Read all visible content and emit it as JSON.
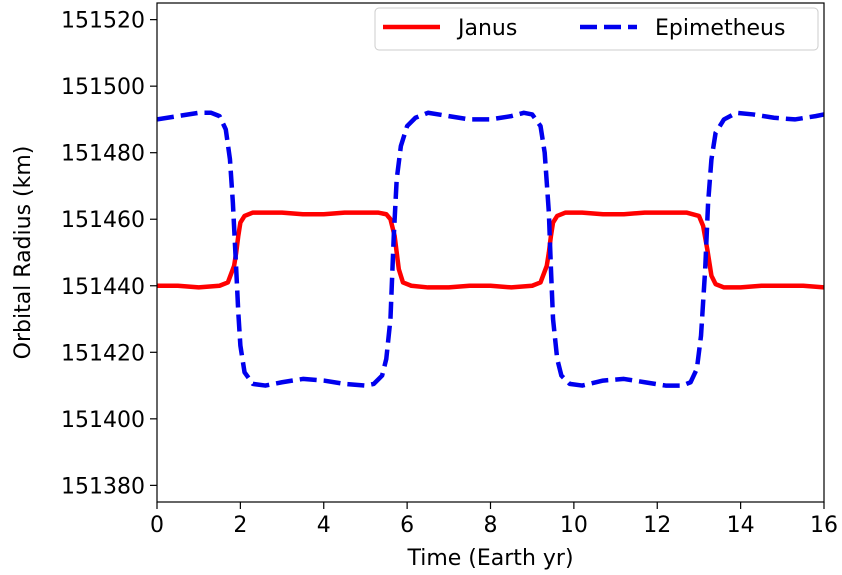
{
  "chart_data": {
    "type": "line",
    "title": "",
    "xlabel": "Time (Earth yr)",
    "ylabel": "Orbital Radius (km)",
    "xlim": [
      0,
      16
    ],
    "ylim": [
      151375,
      151525
    ],
    "xticks": [
      0,
      2,
      4,
      6,
      8,
      10,
      12,
      14,
      16
    ],
    "yticks": [
      151380,
      151400,
      151420,
      151440,
      151460,
      151480,
      151500,
      151520
    ],
    "xtick_labels": [
      "0",
      "2",
      "4",
      "6",
      "8",
      "10",
      "12",
      "14",
      "16"
    ],
    "ytick_labels": [
      "151380",
      "151400",
      "151420",
      "151440",
      "151460",
      "151480",
      "151500",
      "151520"
    ],
    "grid": false,
    "legend_position": "top-right",
    "series": [
      {
        "name": "Janus",
        "color": "#ff0000",
        "style": "solid",
        "x": [
          0,
          0.5,
          1.0,
          1.5,
          1.7,
          1.85,
          1.9,
          1.95,
          2.0,
          2.1,
          2.3,
          2.6,
          3.0,
          3.5,
          4.0,
          4.5,
          5.0,
          5.3,
          5.5,
          5.6,
          5.7,
          5.75,
          5.8,
          5.9,
          6.1,
          6.5,
          7.0,
          7.5,
          8.0,
          8.5,
          9.0,
          9.2,
          9.35,
          9.4,
          9.45,
          9.5,
          9.6,
          9.8,
          10.2,
          10.7,
          11.2,
          11.7,
          12.2,
          12.7,
          13.0,
          13.1,
          13.2,
          13.25,
          13.3,
          13.4,
          13.6,
          14.0,
          14.5,
          15.0,
          15.5,
          16.0
        ],
        "y": [
          151440,
          151440,
          151439.5,
          151440,
          151441,
          151446,
          151450,
          151455,
          151459,
          151461,
          151462,
          151462,
          151462,
          151461.5,
          151461.5,
          151462,
          151462,
          151462,
          151461.5,
          151460,
          151455,
          151450,
          151445,
          151441,
          151440,
          151439.5,
          151439.5,
          151440,
          151440,
          151439.5,
          151440,
          151441,
          151446,
          151450,
          151455,
          151459,
          151461,
          151462,
          151462,
          151461.5,
          151461.5,
          151462,
          151462,
          151462,
          151461,
          151458,
          151451,
          151447,
          151443,
          151440.5,
          151439.5,
          151439.5,
          151440,
          151440,
          151440,
          151439.5
        ]
      },
      {
        "name": "Epimetheus",
        "color": "#0000ee",
        "style": "dashed",
        "x": [
          0,
          0.5,
          1.0,
          1.3,
          1.5,
          1.65,
          1.75,
          1.82,
          1.9,
          1.95,
          2.0,
          2.1,
          2.3,
          2.6,
          3.0,
          3.5,
          4.0,
          4.5,
          5.0,
          5.2,
          5.4,
          5.5,
          5.6,
          5.68,
          5.75,
          5.85,
          6.0,
          6.2,
          6.5,
          7.0,
          7.5,
          8.0,
          8.5,
          8.8,
          9.0,
          9.2,
          9.3,
          9.4,
          9.45,
          9.5,
          9.6,
          9.7,
          9.9,
          10.2,
          10.7,
          11.2,
          11.7,
          12.2,
          12.6,
          12.8,
          12.95,
          13.05,
          13.15,
          13.22,
          13.3,
          13.4,
          13.6,
          13.9,
          14.3,
          14.8,
          15.3,
          15.8,
          16.0
        ],
        "y": [
          151490,
          151491,
          151492,
          151492,
          151491,
          151487,
          151478,
          151465,
          151445,
          151432,
          151422,
          151414,
          151410.5,
          151410,
          151411,
          151412,
          151411.5,
          151410.5,
          151410,
          151410.5,
          151413,
          151418,
          151430,
          151455,
          151472,
          151482,
          151488,
          151490.5,
          151492,
          151491,
          151490,
          151490,
          151491,
          151492,
          151491.5,
          151488,
          151480,
          151462,
          151445,
          151430,
          151418,
          151413,
          151410.5,
          151410,
          151411.5,
          151412,
          151411,
          151410,
          151410,
          151411,
          151415,
          151425,
          151445,
          151465,
          151478,
          151486,
          151490,
          151492,
          151491.5,
          151490.5,
          151490,
          151491,
          151491.5
        ]
      }
    ]
  }
}
